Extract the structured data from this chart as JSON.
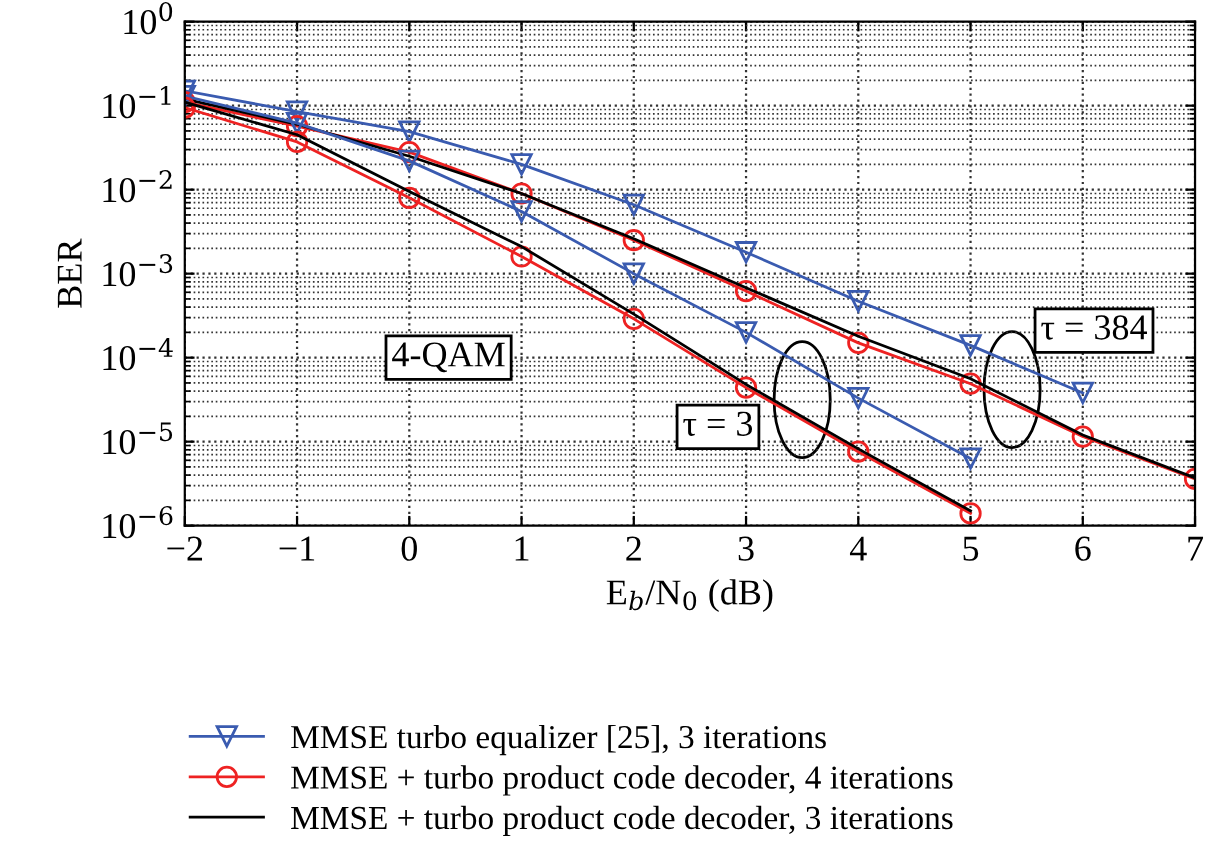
{
  "chart_data": {
    "type": "line",
    "xlabel": "E$_{b}$/N$_{0}$ (dB)",
    "ylabel": "BER",
    "x": [
      -2,
      -1,
      0,
      1,
      2,
      3,
      4,
      5,
      6,
      7
    ],
    "series": [
      {
        "name": "MMSE turbo equalizer [25], 3 iterations",
        "color": "#3a5bb0",
        "marker": "triangle",
        "values": [
          0.15,
          0.085,
          0.049,
          0.02,
          0.0066,
          0.0018,
          0.00047,
          0.00014,
          3.8e-05,
          null
        ]
      },
      {
        "name": "MMSE + turbo product code decoder, 4 iterations",
        "color": "#ee2222",
        "marker": "circle",
        "values": [
          0.11,
          0.057,
          0.028,
          0.009,
          0.0025,
          0.00062,
          0.00015,
          4.9e-05,
          1.15e-05,
          3.6e-06
        ]
      },
      {
        "name": "MMSE + turbo product code decoder, 3 iterations",
        "color": "#000000",
        "marker": "none",
        "values": [
          0.12,
          0.06,
          0.025,
          0.009,
          0.0026,
          0.00068,
          0.00018,
          5.6e-05,
          1.2e-05,
          3.7e-06
        ]
      },
      {
        "color": "#3a5bb0",
        "marker": "triangle",
        "values": [
          0.13,
          0.062,
          0.022,
          0.0055,
          0.001,
          0.0002,
          3.3e-05,
          6.3e-06,
          null,
          null
        ]
      },
      {
        "color": "#ee2222",
        "marker": "circle",
        "values": [
          0.095,
          0.037,
          0.008,
          0.0016,
          0.00029,
          4.4e-05,
          7.6e-06,
          1.4e-06,
          null,
          null
        ]
      },
      {
        "color": "#000000",
        "marker": "none",
        "values": [
          0.11,
          0.045,
          0.0095,
          0.0021,
          0.00033,
          4.8e-05,
          8.2e-06,
          1.5e-06,
          null,
          null
        ]
      }
    ],
    "log": "y",
    "xlim": [
      -2,
      7
    ],
    "ylim": [
      1e-06,
      1
    ],
    "xticks": [
      {
        "value": -2,
        "label": "−2"
      },
      {
        "value": -1,
        "label": "−1"
      },
      0,
      1,
      2,
      3,
      4,
      5,
      6,
      7
    ],
    "yticks": [
      {
        "value": 1e-06,
        "label": "10$^{−6}$"
      },
      {
        "value": 1e-05,
        "label": "10$^{−5}$"
      },
      {
        "value": 0.0001,
        "label": "10$^{−4}$"
      },
      {
        "value": 0.001,
        "label": "10$^{−3}$"
      },
      {
        "value": 0.01,
        "label": "10$^{−2}$"
      },
      {
        "value": 0.1,
        "label": "10$^{−1}$"
      },
      {
        "value": 1,
        "label": "10$^{0}$"
      }
    ],
    "grid": true,
    "legend": "bottom",
    "line_style": "solid",
    "annotations": [
      "4-QAM",
      "τ = 3",
      "τ = 384"
    ]
  }
}
